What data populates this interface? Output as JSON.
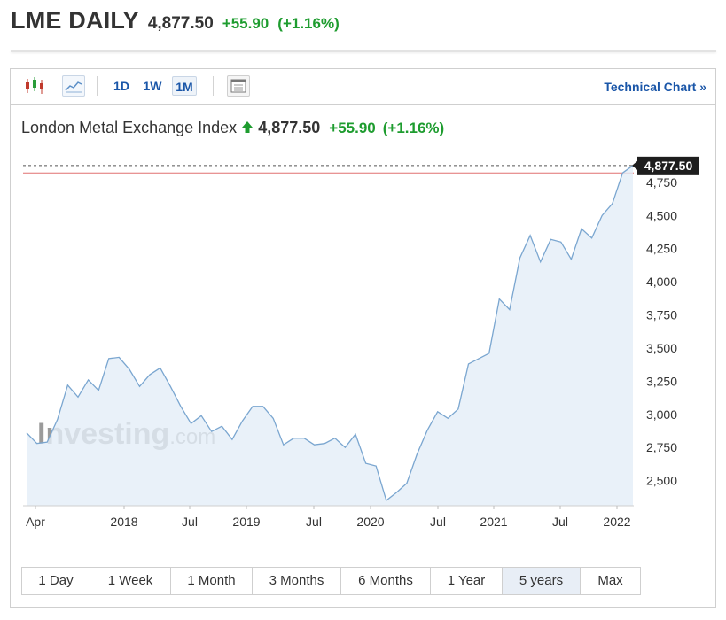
{
  "header": {
    "title": "LME DAILY",
    "price": "4,877.50",
    "change": "+55.90",
    "change_pct": "(+1.16%)"
  },
  "toolbar": {
    "intervals": [
      "1D",
      "1W",
      "1M"
    ],
    "active_interval": "1M",
    "technical_chart_label": "Technical Chart »"
  },
  "colors": {
    "up_green": "#1e9c2f",
    "link_blue": "#1a56a8",
    "line_blue": "#7aa6d0",
    "area_fill": "#e3edf7",
    "ref_red": "#e07070"
  },
  "chart_header": {
    "name": "London Metal Exchange Index",
    "price": "4,877.50",
    "change": "+55.90",
    "change_pct": "(+1.16%)"
  },
  "watermark": {
    "brand": "Investing",
    "suffix": ".com"
  },
  "chart_data": {
    "type": "area",
    "title": "London Metal Exchange Index",
    "x_tick_labels": [
      "Apr",
      "2018",
      "Jul",
      "2019",
      "Jul",
      "2020",
      "Jul",
      "2021",
      "Jul",
      "2022"
    ],
    "ytick_labels": [
      "2,500",
      "2,750",
      "3,000",
      "3,250",
      "3,500",
      "3,750",
      "4,000",
      "4,250",
      "4,500",
      "4,750"
    ],
    "ytick_values": [
      2500,
      2750,
      3000,
      3250,
      3500,
      3750,
      4000,
      4250,
      4500,
      4750
    ],
    "ylim": [
      2310,
      4950
    ],
    "last_value_label": "4,877.50",
    "last_value": 4877.5,
    "reference_line_value": 4821.6,
    "grid": false,
    "series": [
      {
        "x": [
          "2017-03",
          "2017-04",
          "2017-05",
          "2017-06",
          "2017-07",
          "2017-08",
          "2017-09",
          "2017-10",
          "2017-11",
          "2017-12",
          "2018-01",
          "2018-02",
          "2018-03",
          "2018-04",
          "2018-05",
          "2018-06",
          "2018-07",
          "2018-08",
          "2018-09",
          "2018-10",
          "2018-11",
          "2018-12",
          "2019-01",
          "2019-02",
          "2019-03",
          "2019-04",
          "2019-05",
          "2019-06",
          "2019-07",
          "2019-08",
          "2019-09",
          "2019-10",
          "2019-11",
          "2019-12",
          "2020-01",
          "2020-02",
          "2020-03",
          "2020-04",
          "2020-05",
          "2020-06",
          "2020-07",
          "2020-08",
          "2020-09",
          "2020-10",
          "2020-11",
          "2020-12",
          "2021-01",
          "2021-02",
          "2021-03",
          "2021-04",
          "2021-05",
          "2021-06",
          "2021-07",
          "2021-08",
          "2021-09",
          "2021-10",
          "2021-11",
          "2021-12",
          "2022-01",
          "2022-02"
        ],
        "y": [
          2860,
          2780,
          2790,
          2960,
          3220,
          3130,
          3260,
          3180,
          3420,
          3430,
          3340,
          3210,
          3300,
          3350,
          3210,
          3060,
          2930,
          2990,
          2870,
          2910,
          2810,
          2950,
          3060,
          3060,
          2970,
          2770,
          2820,
          2820,
          2770,
          2780,
          2820,
          2750,
          2850,
          2630,
          2610,
          2350,
          2410,
          2480,
          2700,
          2880,
          3020,
          2970,
          3040,
          3380,
          3420,
          3460,
          3870,
          3790,
          4180,
          4350,
          4150,
          4320,
          4300,
          4170,
          4400,
          4330,
          4500,
          4590,
          4821.6,
          4877.5
        ]
      }
    ]
  },
  "ranges": [
    "1 Day",
    "1 Week",
    "1 Month",
    "3 Months",
    "6 Months",
    "1 Year",
    "5 years",
    "Max"
  ],
  "active_range": "5 years"
}
